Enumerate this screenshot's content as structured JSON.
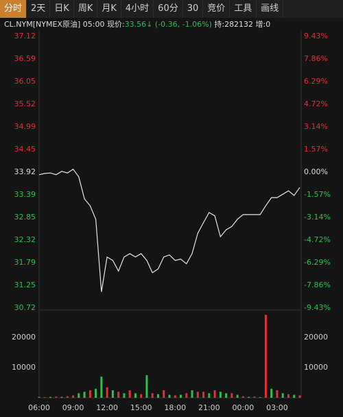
{
  "toolbar": {
    "tabs": [
      "分时",
      "2天",
      "日K",
      "周K",
      "月K",
      "4小时",
      "60分",
      "30",
      "竞价",
      "工具",
      "画线"
    ]
  },
  "header": {
    "symbol": "CL.NYM[NYMEX原油]",
    "time": "05:00",
    "price_label": "现价:",
    "price": "33.56",
    "change": "(-0.36, -1.06%)",
    "holdings": "持:282132 增:0"
  },
  "chart_data": {
    "type": "line",
    "categories": [
      "06:00",
      null,
      null,
      null,
      null,
      null,
      "09:00",
      null,
      null,
      null,
      null,
      null,
      "12:00",
      null,
      null,
      null,
      null,
      null,
      "15:00",
      null,
      null,
      null,
      null,
      null,
      "18:00",
      null,
      null,
      null,
      null,
      null,
      "21:00",
      null,
      null,
      null,
      null,
      null,
      "00:00",
      null,
      null,
      null,
      null,
      null,
      "03:00",
      null,
      null,
      null,
      null
    ],
    "values": [
      33.86,
      33.89,
      33.9,
      33.86,
      33.94,
      33.9,
      33.99,
      33.81,
      33.29,
      33.13,
      32.81,
      31.1,
      31.92,
      31.84,
      31.59,
      31.92,
      32.0,
      31.92,
      32.0,
      31.84,
      31.55,
      31.64,
      31.92,
      31.97,
      31.84,
      31.87,
      31.76,
      32.0,
      32.48,
      32.73,
      32.97,
      32.89,
      32.4,
      32.56,
      32.64,
      32.81,
      32.92,
      32.92,
      32.92,
      32.92,
      33.13,
      33.32,
      33.32,
      33.4,
      33.48,
      33.37,
      33.56
    ],
    "color": "#e6e6e6",
    "ylim": [
      30.72,
      37.12
    ],
    "yticks": [
      37.12,
      36.59,
      36.05,
      35.52,
      34.99,
      34.45,
      33.92,
      33.39,
      32.85,
      32.32,
      31.79,
      31.25,
      30.72
    ],
    "y2lim": [
      -9.43,
      9.43
    ],
    "y2ticks": [
      {
        "value": 9.43,
        "label": "9.43%"
      },
      {
        "value": 7.86,
        "label": "7.86%"
      },
      {
        "value": 6.29,
        "label": "6.29%"
      },
      {
        "value": 4.72,
        "label": "4.72%"
      },
      {
        "value": 3.14,
        "label": "3.14%"
      },
      {
        "value": 1.57,
        "label": "1.57%"
      },
      {
        "value": 0,
        "label": "0.00%"
      },
      {
        "value": -1.57,
        "label": "-1.57%"
      },
      {
        "value": -3.14,
        "label": "-3.14%"
      },
      {
        "value": -4.72,
        "label": "-4.72%"
      },
      {
        "value": -6.29,
        "label": "-6.29%"
      },
      {
        "value": -7.86,
        "label": "-7.86%"
      },
      {
        "value": -9.43,
        "label": "-9.43%"
      }
    ],
    "volume": {
      "values": [
        300,
        200,
        300,
        400,
        300,
        500,
        800,
        1500,
        2000,
        2500,
        3000,
        7000,
        3500,
        2500,
        2000,
        1500,
        2500,
        1500,
        1200,
        7500,
        1500,
        1200,
        2500,
        1000,
        800,
        1000,
        1500,
        2500,
        2000,
        2000,
        1500,
        2500,
        2000,
        1500,
        1500,
        1000,
        500,
        300,
        400,
        200,
        27500,
        3000,
        2500,
        1500,
        1200,
        1000,
        800
      ],
      "colors": [
        "#2fbf4f",
        "#e0303a",
        "#2fbf4f",
        "#e0303a",
        "#2fbf4f",
        "#e0303a",
        "#e0303a",
        "#2fbf4f",
        "#2fbf4f",
        "#e0303a",
        "#2fbf4f",
        "#2fbf4f",
        "#e0303a",
        "#2fbf4f",
        "#e0303a",
        "#2fbf4f",
        "#e0303a",
        "#2fbf4f",
        "#e0303a",
        "#2fbf4f",
        "#e0303a",
        "#2fbf4f",
        "#e0303a",
        "#2fbf4f",
        "#e0303a",
        "#2fbf4f",
        "#e0303a",
        "#2fbf4f",
        "#e0303a",
        "#e0303a",
        "#2fbf4f",
        "#e0303a",
        "#2fbf4f",
        "#2fbf4f",
        "#e0303a",
        "#2fbf4f",
        "#e0303a",
        "#2fbf4f",
        "#e0303a",
        "#2fbf4f",
        "#e0303a",
        "#2fbf4f",
        "#e0303a",
        "#2fbf4f",
        "#e0303a",
        "#2fbf4f",
        "#e0303a"
      ],
      "ylim": [
        0,
        28400
      ],
      "yticks": [
        20000,
        10000
      ]
    }
  }
}
